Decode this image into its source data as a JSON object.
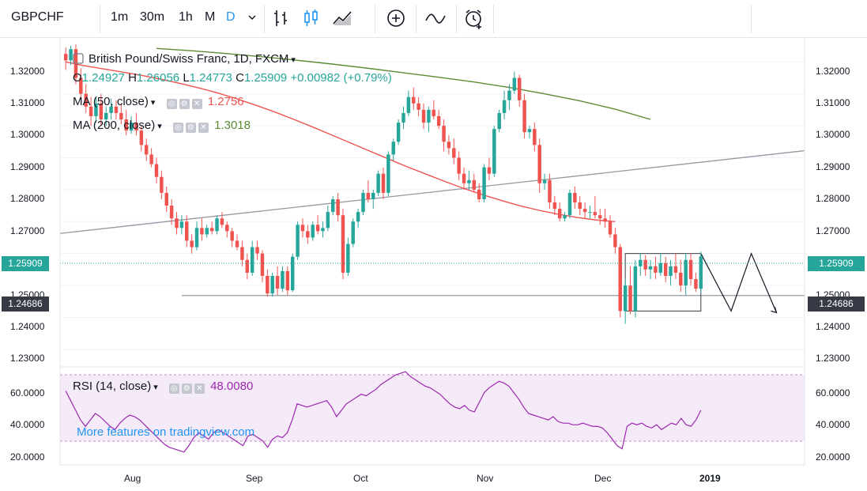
{
  "toolbar": {
    "symbol": "GBPCHF",
    "intervals": [
      {
        "label": "1m",
        "active": false
      },
      {
        "label": "30m",
        "active": false
      },
      {
        "label": "1h",
        "active": false
      },
      {
        "label": "M",
        "active": false
      },
      {
        "label": "D",
        "active": true
      }
    ],
    "icons": [
      "chevron-down-icon",
      "bars-chart-icon",
      "candles-chart-icon",
      "area-chart-icon",
      "add-indicator-icon",
      "compare-icon",
      "alert-clock-icon"
    ]
  },
  "legend": {
    "title": "British Pound/Swiss Franc, 1D, FXCM",
    "ohlc": {
      "o_label": "O",
      "o": "1.24927",
      "h_label": "H",
      "h": "1.26056",
      "l_label": "L",
      "l": "1.24773",
      "c_label": "C",
      "c": "1.25909",
      "change": "+0.00982 (+0.79%)"
    },
    "ma50": {
      "title": "MA (50, close)",
      "value": "1.2756",
      "color": "#ef5350"
    },
    "ma200": {
      "title": "MA (200, close)",
      "value": "1.3018",
      "color": "#5b8c33"
    },
    "rsi": {
      "title": "RSI (14, close)",
      "value": "48.0080",
      "color": "#9c27b0"
    }
  },
  "price_axis": {
    "labels": [
      "1.32000",
      "1.31000",
      "1.30000",
      "1.29000",
      "1.28000",
      "1.27000",
      "1.25000",
      "1.24000",
      "1.23000"
    ],
    "current_price": "1.25909",
    "current_color": "#26a69a",
    "line_price": "1.24686",
    "line_color": "#363a45"
  },
  "rsi_axis": {
    "labels": [
      "60.0000",
      "40.0000",
      "20.0000"
    ]
  },
  "time_axis": {
    "labels": [
      "Aug",
      "Sep",
      "Oct",
      "Nov",
      "Dec",
      "2019"
    ]
  },
  "watermark": "More features on tradingview.com",
  "chart_data": {
    "type": "candlestick",
    "ylim": [
      1.226,
      1.3275
    ],
    "up_color": "#26a69a",
    "down_color": "#ef5350",
    "candles": [
      [
        1.3225,
        1.3245,
        1.3175,
        1.3205
      ],
      [
        1.3205,
        1.325,
        1.319,
        1.324
      ],
      [
        1.324,
        1.3255,
        1.313,
        1.315
      ],
      [
        1.315,
        1.318,
        1.308,
        1.31
      ],
      [
        1.31,
        1.313,
        1.304,
        1.306
      ],
      [
        1.306,
        1.309,
        1.3,
        1.303
      ],
      [
        1.303,
        1.309,
        1.301,
        1.307
      ],
      [
        1.307,
        1.31,
        1.3,
        1.302
      ],
      [
        1.302,
        1.306,
        1.3,
        1.304
      ],
      [
        1.304,
        1.3085,
        1.302,
        1.306
      ],
      [
        1.306,
        1.308,
        1.302,
        1.304
      ],
      [
        1.304,
        1.307,
        1.3005,
        1.302
      ],
      [
        1.302,
        1.305,
        1.297,
        1.2985
      ],
      [
        1.2985,
        1.303,
        1.2975,
        1.301
      ],
      [
        1.301,
        1.304,
        1.297,
        1.2985
      ],
      [
        1.2985,
        1.3,
        1.292,
        1.294
      ],
      [
        1.294,
        1.296,
        1.289,
        1.291
      ],
      [
        1.291,
        1.293,
        1.287,
        1.288
      ],
      [
        1.288,
        1.29,
        1.282,
        1.284
      ],
      [
        1.284,
        1.286,
        1.277,
        1.279
      ],
      [
        1.279,
        1.281,
        1.273,
        1.275
      ],
      [
        1.275,
        1.277,
        1.269,
        1.271
      ],
      [
        1.271,
        1.273,
        1.266,
        1.268
      ],
      [
        1.268,
        1.272,
        1.266,
        1.27
      ],
      [
        1.27,
        1.272,
        1.262,
        1.264
      ],
      [
        1.264,
        1.266,
        1.26,
        1.262
      ],
      [
        1.262,
        1.27,
        1.261,
        1.268
      ],
      [
        1.268,
        1.271,
        1.264,
        1.266
      ],
      [
        1.266,
        1.269,
        1.265,
        1.268
      ],
      [
        1.268,
        1.27,
        1.266,
        1.267
      ],
      [
        1.267,
        1.272,
        1.266,
        1.271
      ],
      [
        1.271,
        1.273,
        1.268,
        1.269
      ],
      [
        1.269,
        1.27,
        1.265,
        1.267
      ],
      [
        1.267,
        1.268,
        1.262,
        1.264
      ],
      [
        1.264,
        1.266,
        1.261,
        1.262
      ],
      [
        1.262,
        1.264,
        1.256,
        1.258
      ],
      [
        1.258,
        1.26,
        1.252,
        1.254
      ],
      [
        1.254,
        1.264,
        1.253,
        1.262
      ],
      [
        1.262,
        1.264,
        1.258,
        1.26
      ],
      [
        1.26,
        1.261,
        1.251,
        1.253
      ],
      [
        1.253,
        1.255,
        1.2465,
        1.2475
      ],
      [
        1.2475,
        1.254,
        1.2465,
        1.253
      ],
      [
        1.253,
        1.256,
        1.247,
        1.249
      ],
      [
        1.249,
        1.256,
        1.248,
        1.2545
      ],
      [
        1.2545,
        1.256,
        1.247,
        1.2485
      ],
      [
        1.2485,
        1.26,
        1.248,
        1.259
      ],
      [
        1.259,
        1.27,
        1.258,
        1.269
      ],
      [
        1.269,
        1.271,
        1.265,
        1.267
      ],
      [
        1.267,
        1.269,
        1.263,
        1.265
      ],
      [
        1.265,
        1.27,
        1.264,
        1.269
      ],
      [
        1.269,
        1.272,
        1.266,
        1.267
      ],
      [
        1.267,
        1.27,
        1.265,
        1.268
      ],
      [
        1.268,
        1.275,
        1.267,
        1.273
      ],
      [
        1.273,
        1.278,
        1.272,
        1.277
      ],
      [
        1.277,
        1.279,
        1.27,
        1.272
      ],
      [
        1.272,
        1.274,
        1.252,
        1.254
      ],
      [
        1.254,
        1.265,
        1.253,
        1.263
      ],
      [
        1.263,
        1.271,
        1.262,
        1.27
      ],
      [
        1.27,
        1.274,
        1.268,
        1.273
      ],
      [
        1.273,
        1.28,
        1.272,
        1.279
      ],
      [
        1.279,
        1.283,
        1.276,
        1.277
      ],
      [
        1.277,
        1.28,
        1.274,
        1.279
      ],
      [
        1.279,
        1.286,
        1.278,
        1.285
      ],
      [
        1.285,
        1.287,
        1.277,
        1.279
      ],
      [
        1.279,
        1.292,
        1.278,
        1.291
      ],
      [
        1.291,
        1.296,
        1.289,
        1.295
      ],
      [
        1.295,
        1.302,
        1.294,
        1.301
      ],
      [
        1.301,
        1.306,
        1.299,
        1.304
      ],
      [
        1.304,
        1.311,
        1.303,
        1.309
      ],
      [
        1.309,
        1.312,
        1.305,
        1.307
      ],
      [
        1.307,
        1.309,
        1.303,
        1.305
      ],
      [
        1.305,
        1.307,
        1.299,
        1.301
      ],
      [
        1.301,
        1.306,
        1.298,
        1.305
      ],
      [
        1.305,
        1.308,
        1.302,
        1.303
      ],
      [
        1.303,
        1.305,
        1.299,
        1.3
      ],
      [
        1.3,
        1.302,
        1.292,
        1.295
      ],
      [
        1.295,
        1.297,
        1.291,
        1.293
      ],
      [
        1.293,
        1.296,
        1.288,
        1.29
      ],
      [
        1.29,
        1.292,
        1.283,
        1.285
      ],
      [
        1.285,
        1.287,
        1.28,
        1.282
      ],
      [
        1.282,
        1.286,
        1.28,
        1.283
      ],
      [
        1.283,
        1.285,
        1.279,
        1.28
      ],
      [
        1.28,
        1.282,
        1.276,
        1.277
      ],
      [
        1.277,
        1.288,
        1.276,
        1.287
      ],
      [
        1.287,
        1.29,
        1.283,
        1.285
      ],
      [
        1.285,
        1.3,
        1.284,
        1.299
      ],
      [
        1.299,
        1.305,
        1.298,
        1.304
      ],
      [
        1.304,
        1.311,
        1.302,
        1.308
      ],
      [
        1.308,
        1.313,
        1.305,
        1.311
      ],
      [
        1.311,
        1.317,
        1.31,
        1.315
      ],
      [
        1.315,
        1.316,
        1.306,
        1.308
      ],
      [
        1.308,
        1.31,
        1.296,
        1.298
      ],
      [
        1.298,
        1.3,
        1.296,
        1.299
      ],
      [
        1.299,
        1.301,
        1.292,
        1.294
      ],
      [
        1.294,
        1.296,
        1.279,
        1.282
      ],
      [
        1.282,
        1.285,
        1.28,
        1.283
      ],
      [
        1.283,
        1.285,
        1.274,
        1.276
      ],
      [
        1.276,
        1.278,
        1.272,
        1.274
      ],
      [
        1.274,
        1.276,
        1.27,
        1.271
      ],
      [
        1.271,
        1.273,
        1.27,
        1.272
      ],
      [
        1.272,
        1.28,
        1.271,
        1.279
      ],
      [
        1.279,
        1.281,
        1.274,
        1.276
      ],
      [
        1.276,
        1.278,
        1.272,
        1.274
      ],
      [
        1.274,
        1.276,
        1.271,
        1.273
      ],
      [
        1.273,
        1.275,
        1.271,
        1.273
      ],
      [
        1.273,
        1.278,
        1.271,
        1.272
      ],
      [
        1.272,
        1.274,
        1.269,
        1.271
      ],
      [
        1.271,
        1.274,
        1.268,
        1.27
      ],
      [
        1.27,
        1.272,
        1.265,
        1.266
      ],
      [
        1.266,
        1.268,
        1.26,
        1.262
      ],
      [
        1.262,
        1.263,
        1.24,
        1.242
      ],
      [
        1.242,
        1.252,
        1.238,
        1.25
      ],
      [
        1.25,
        1.256,
        1.241,
        1.242
      ],
      [
        1.242,
        1.258,
        1.24,
        1.256
      ],
      [
        1.256,
        1.26,
        1.253,
        1.258
      ],
      [
        1.258,
        1.2595,
        1.253,
        1.255
      ],
      [
        1.255,
        1.258,
        1.252,
        1.256
      ],
      [
        1.256,
        1.259,
        1.252,
        1.254
      ],
      [
        1.254,
        1.26,
        1.253,
        1.257
      ],
      [
        1.257,
        1.259,
        1.251,
        1.253
      ],
      [
        1.253,
        1.258,
        1.25,
        1.256
      ],
      [
        1.256,
        1.26,
        1.252,
        1.254
      ],
      [
        1.254,
        1.258,
        1.248,
        1.25
      ],
      [
        1.25,
        1.26,
        1.247,
        1.258
      ],
      [
        1.258,
        1.26,
        1.25,
        1.252
      ],
      [
        1.252,
        1.254,
        1.248,
        1.249
      ],
      [
        1.249,
        1.2606,
        1.2477,
        1.2591
      ]
    ],
    "ma50": [
      1.32,
      1.3188,
      1.3178,
      1.3168,
      1.3158,
      1.3146,
      1.3133,
      1.3119,
      1.3103,
      1.3085,
      1.3065,
      1.3044,
      1.3021,
      1.2997,
      1.2972,
      1.2947,
      1.2922,
      1.2897,
      1.2872,
      1.2849,
      1.2826,
      1.2804,
      1.2784,
      1.2766,
      1.2749,
      1.2735,
      1.2723,
      1.2713,
      1.2705,
      1.27
    ],
    "ma50_range": [
      0,
      109
    ],
    "ma200": [
      1.3242,
      1.3235,
      1.3226,
      1.3216,
      1.3205,
      1.3193,
      1.318,
      1.3166,
      1.3152,
      1.3137,
      1.312,
      1.31,
      1.3078,
      1.3052,
      1.302
    ],
    "ma200_range": [
      18,
      116
    ],
    "support_line": {
      "x": [
        23,
        139
      ],
      "y": 1.24686
    },
    "trend_line": {
      "x": [
        0,
        139
      ],
      "y": [
        1.2663,
        1.2922
      ]
    },
    "box": {
      "x": [
        111,
        126
      ],
      "y": [
        1.242,
        1.26
      ]
    },
    "projection": {
      "x": [
        126,
        132,
        136,
        141
      ],
      "y": [
        1.26,
        1.242,
        1.26,
        1.2415
      ]
    },
    "rsi": [
      60,
      54,
      48,
      42,
      38,
      42,
      46,
      44,
      41,
      38,
      36,
      40,
      43,
      45,
      44,
      42,
      39,
      36,
      33,
      30,
      27,
      25,
      24,
      23,
      22,
      26,
      31,
      34,
      32,
      30,
      34,
      36,
      34,
      32,
      30,
      28,
      26,
      32,
      33,
      31,
      29,
      25,
      30,
      32,
      31,
      34,
      42,
      52,
      51,
      50,
      51,
      52,
      53,
      54,
      50,
      44,
      48,
      52,
      54,
      56,
      58,
      57,
      59,
      61,
      64,
      66,
      68,
      70,
      71,
      72,
      69,
      67,
      65,
      63,
      62,
      60,
      58,
      55,
      52,
      50,
      49,
      51,
      48,
      47,
      53,
      59,
      62,
      64,
      66,
      65,
      63,
      59,
      55,
      50,
      46,
      45,
      44,
      43,
      42,
      44,
      41,
      40,
      40,
      39,
      39,
      40,
      39,
      38,
      38,
      37,
      34,
      30,
      26,
      24,
      38,
      40,
      39,
      40,
      38,
      37,
      39,
      36,
      38,
      40,
      39,
      43,
      39,
      38,
      42,
      48
    ],
    "rsi_ylim": [
      15,
      75
    ]
  }
}
